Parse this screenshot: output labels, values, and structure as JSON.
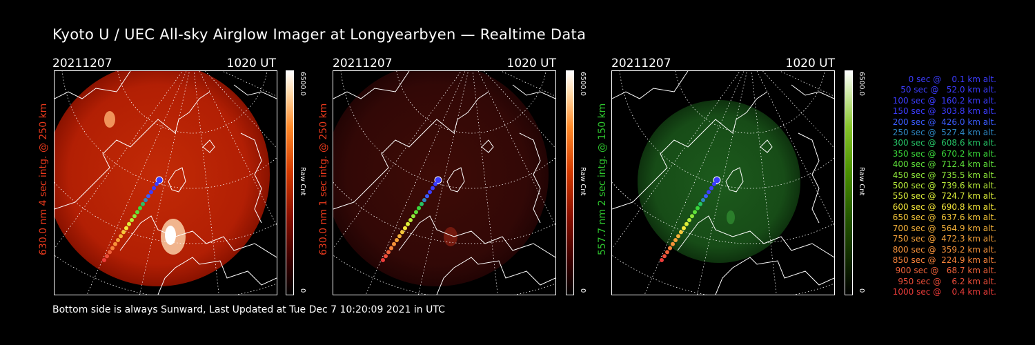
{
  "title": "Kyoto U / UEC All-sky Airglow Imager at Longyearbyen — Realtime Data",
  "footer": "Bottom side is always Sunward, Last Updated at Tue Dec  7 10:20:09 2021 in UTC",
  "panels": [
    {
      "date": "20211207",
      "time": "1020 UT",
      "side_label": "630.0 nm 4 sec intg. @ 250 km",
      "label_color": "#e8391c",
      "cbar_max": "6500.0",
      "cbar_unit": "Raw Cnt",
      "cbar_min": "0",
      "image_tint": "red-bright",
      "cbar_color": "#ff3b00"
    },
    {
      "date": "20211207",
      "time": "1020 UT",
      "side_label": "630.0 nm 1 sec intg. @ 250 km",
      "label_color": "#e8391c",
      "cbar_max": "6500.0",
      "cbar_unit": "Raw Cnt",
      "cbar_min": "0",
      "image_tint": "red-dim",
      "cbar_color": "#ff3b00"
    },
    {
      "date": "20211207",
      "time": "1020 UT",
      "side_label": "557.7 nm 2 sec intg. @ 150 km",
      "label_color": "#2ec52e",
      "cbar_max": "6500.0",
      "cbar_unit": "Raw Cnt",
      "cbar_min": "0",
      "image_tint": "green",
      "cbar_color": "#5aa800"
    }
  ],
  "legend": [
    {
      "text": "   0 sec @    0.1 km alt.",
      "color": "#3c3cff"
    },
    {
      "text": "  50 sec @   52.0 km alt.",
      "color": "#3c3cff"
    },
    {
      "text": " 100 sec @  160.2 km alt.",
      "color": "#3c3cff"
    },
    {
      "text": " 150 sec @  303.8 km alt.",
      "color": "#3c3cff"
    },
    {
      "text": " 200 sec @  426.0 km alt.",
      "color": "#3a5cff"
    },
    {
      "text": " 250 sec @  527.4 km alt.",
      "color": "#2e86c1"
    },
    {
      "text": " 300 sec @  608.6 km alt.",
      "color": "#26c466"
    },
    {
      "text": " 350 sec @  670.2 km alt.",
      "color": "#3ad83a"
    },
    {
      "text": " 400 sec @  712.4 km alt.",
      "color": "#5ee03a"
    },
    {
      "text": " 450 sec @  735.5 km alt.",
      "color": "#8ee83a"
    },
    {
      "text": " 500 sec @  739.6 km alt.",
      "color": "#b8ec3a"
    },
    {
      "text": " 550 sec @  724.7 km alt.",
      "color": "#dcee3a"
    },
    {
      "text": " 600 sec @  690.8 km alt.",
      "color": "#f6e83a"
    },
    {
      "text": " 650 sec @  637.6 km alt.",
      "color": "#f6c83a"
    },
    {
      "text": " 700 sec @  564.9 km alt.",
      "color": "#f6b23a"
    },
    {
      "text": " 750 sec @  472.3 km alt.",
      "color": "#f6a23a"
    },
    {
      "text": " 800 sec @  359.2 km alt.",
      "color": "#f6923a"
    },
    {
      "text": " 850 sec @  224.9 km alt.",
      "color": "#f6823a"
    },
    {
      "text": " 900 sec @   68.7 km alt.",
      "color": "#f0623a"
    },
    {
      "text": " 950 sec @    6.2 km alt.",
      "color": "#ee4e3a"
    },
    {
      "text": "1000 sec @    0.4 km alt.",
      "color": "#ec3c3a"
    }
  ]
}
